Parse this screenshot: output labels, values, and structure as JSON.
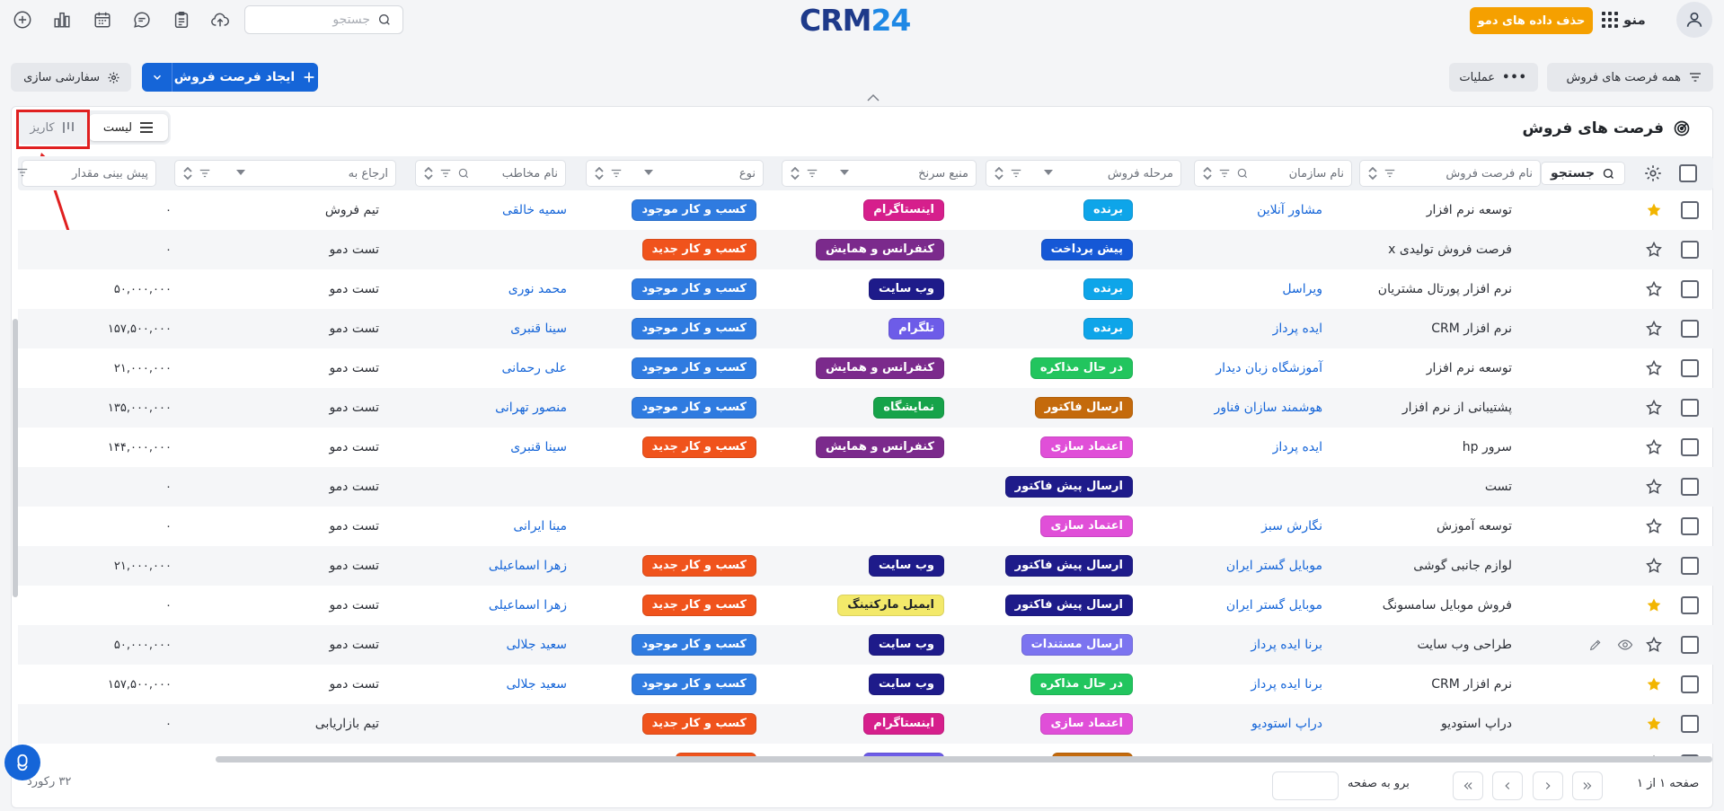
{
  "topbar": {
    "search_placeholder": "جستجو",
    "logo_left": "CRM",
    "logo_right": "24",
    "demo_button": "حذف داده های دمو",
    "menu_label": "منو"
  },
  "toolbar": {
    "all_opportunities": "همه فرصت های فروش",
    "operations": "عملیات",
    "create_opportunity": "ایجاد فرصت فروش",
    "customize": "سفارشی سازی"
  },
  "card": {
    "title": "فرصت های فروش",
    "view_list": "لیست",
    "view_kanban": "کاریز"
  },
  "table": {
    "search_button": "جستجو",
    "columns": [
      {
        "key": "name",
        "placeholder": "نام فرصت فروش"
      },
      {
        "key": "org",
        "placeholder": "نام سازمان"
      },
      {
        "key": "stage",
        "placeholder": "مرحله فروش"
      },
      {
        "key": "source",
        "placeholder": "منبع سرنخ"
      },
      {
        "key": "type",
        "placeholder": "نوع"
      },
      {
        "key": "contact",
        "placeholder": "نام مخاطب"
      },
      {
        "key": "assigned",
        "placeholder": "ارجاع به"
      },
      {
        "key": "forecast",
        "placeholder": "پیش بینی مقدار"
      }
    ],
    "rows": [
      {
        "starred": true,
        "name": "توسعه نرم افزار",
        "org": "مشاور آنلاین",
        "stage": "برنده",
        "stage_color": "#0ea5e9",
        "source": "اینستاگرام",
        "source_color": "#d61f8c",
        "type": "کسب و کار موجود",
        "type_color": "#2f7be0",
        "contact": "سمیه خالقی",
        "assigned": "تیم فروش",
        "forecast": "۰"
      },
      {
        "starred": false,
        "name": "فرصت فروش تولیدی x",
        "org": "",
        "stage": "پیش پرداخت",
        "stage_color": "#1558d6",
        "source": "کنفرانس و همایش",
        "source_color": "#7b2a8c",
        "type": "کسب و کار جدید",
        "type_color": "#f0531c",
        "contact": "",
        "assigned": "تست دمو",
        "forecast": "۰"
      },
      {
        "starred": false,
        "name": "نرم افزار پورتال مشتریان",
        "org": "ویراسل",
        "stage": "برنده",
        "stage_color": "#0ea5e9",
        "source": "وب سایت",
        "source_color": "#1e1b8a",
        "type": "کسب و کار موجود",
        "type_color": "#2f7be0",
        "contact": "محمد نوری",
        "assigned": "تست دمو",
        "forecast": "۵۰,۰۰۰,۰۰۰"
      },
      {
        "starred": false,
        "name": "نرم افزار CRM",
        "org": "ایده پرداز",
        "stage": "برنده",
        "stage_color": "#0ea5e9",
        "source": "تلگرام",
        "source_color": "#6d5ce8",
        "type": "کسب و کار موجود",
        "type_color": "#2f7be0",
        "contact": "سینا قنبری",
        "assigned": "تست دمو",
        "forecast": "۱۵۷,۵۰۰,۰۰۰"
      },
      {
        "starred": false,
        "name": "توسعه نرم افزار",
        "org": "آموزشگاه زبان دیدار",
        "stage": "در حال مذاکره",
        "stage_color": "#22c55e",
        "source": "کنفرانس و همایش",
        "source_color": "#7b2a8c",
        "type": "کسب و کار موجود",
        "type_color": "#2f7be0",
        "contact": "علی رحمانی",
        "assigned": "تست دمو",
        "forecast": "۲۱,۰۰۰,۰۰۰"
      },
      {
        "starred": false,
        "name": "پشتیبانی از نرم افزار",
        "org": "هوشمند سازان فناور",
        "stage": "ارسال فاکتور",
        "stage_color": "#c46a0c",
        "source": "نمایشگاه",
        "source_color": "#16a34a",
        "type": "کسب و کار موجود",
        "type_color": "#2f7be0",
        "contact": "منصور تهرانی",
        "assigned": "تست دمو",
        "forecast": "۱۳۵,۰۰۰,۰۰۰"
      },
      {
        "starred": false,
        "name": "سرور hp",
        "org": "ایده پرداز",
        "stage": "اعتماد سازی",
        "stage_color": "#e04fd8",
        "source": "کنفرانس و همایش",
        "source_color": "#7b2a8c",
        "type": "کسب و کار جدید",
        "type_color": "#f0531c",
        "contact": "سینا قنبری",
        "assigned": "تست دمو",
        "forecast": "۱۴۴,۰۰۰,۰۰۰"
      },
      {
        "starred": false,
        "name": "تست",
        "org": "",
        "stage": "ارسال پیش فاکتور",
        "stage_color": "#1e1b8a",
        "source": "",
        "source_color": "",
        "type": "",
        "type_color": "",
        "contact": "",
        "assigned": "تست دمو",
        "forecast": "۰"
      },
      {
        "starred": false,
        "name": "توسعه آموزش",
        "org": "نگارش سبز",
        "stage": "اعتماد سازی",
        "stage_color": "#e04fd8",
        "source": "",
        "source_color": "",
        "type": "",
        "type_color": "",
        "contact": "مینا ایرانی",
        "assigned": "تست دمو",
        "forecast": "۰"
      },
      {
        "starred": false,
        "name": "لوازم جانبی گوشی",
        "org": "موبایل گستر ایران",
        "stage": "ارسال پیش فاکتور",
        "stage_color": "#1e1b8a",
        "source": "وب سایت",
        "source_color": "#1e1b8a",
        "type": "کسب و کار جدید",
        "type_color": "#f0531c",
        "contact": "زهرا اسماعیلی",
        "assigned": "تست دمو",
        "forecast": "۲۱,۰۰۰,۰۰۰"
      },
      {
        "starred": true,
        "name": "فروش موبایل سامسونگ",
        "org": "موبایل گستر ایران",
        "stage": "ارسال پیش فاکتور",
        "stage_color": "#1e1b8a",
        "source": "ایمیل مارکتینگ",
        "source_color": "#f3e96a",
        "type": "کسب و کار جدید",
        "type_color": "#f0531c",
        "contact": "زهرا اسماعیلی",
        "assigned": "تست دمو",
        "forecast": "۰"
      },
      {
        "starred": false,
        "name": "طراحی وب سایت",
        "org": "برنا ایده پرداز",
        "stage": "ارسال مستندات",
        "stage_color": "#7c74f0",
        "source": "وب سایت",
        "source_color": "#1e1b8a",
        "type": "کسب و کار موجود",
        "type_color": "#2f7be0",
        "contact": "سعید جلالی",
        "assigned": "تست دمو",
        "forecast": "۵۰,۰۰۰,۰۰۰",
        "hover": true
      },
      {
        "starred": true,
        "name": "نرم افزار CRM",
        "org": "برنا ایده پرداز",
        "stage": "در حال مذاکره",
        "stage_color": "#22c55e",
        "source": "وب سایت",
        "source_color": "#1e1b8a",
        "type": "کسب و کار موجود",
        "type_color": "#2f7be0",
        "contact": "سعید جلالی",
        "assigned": "تست دمو",
        "forecast": "۱۵۷,۵۰۰,۰۰۰"
      },
      {
        "starred": true,
        "name": "دراپ استودیو",
        "org": "دراپ استودیو",
        "stage": "اعتماد سازی",
        "stage_color": "#e04fd8",
        "source": "اینستاگرام",
        "source_color": "#d61f8c",
        "type": "کسب و کار جدید",
        "type_color": "#f0531c",
        "contact": "",
        "assigned": "تیم بازاریابی",
        "forecast": "۰"
      },
      {
        "starred": false,
        "name": "",
        "org": "",
        "stage": "",
        "stage_color": "#c46a0c",
        "source": "",
        "source_color": "#6d5ce8",
        "type": "",
        "type_color": "#f0531c",
        "contact": "",
        "assigned": "",
        "forecast": ""
      }
    ]
  },
  "footer": {
    "records": "۳۲ رکورد",
    "goto_label": "برو به صفحه",
    "page_info": "صفحه ۱ از ۱"
  }
}
